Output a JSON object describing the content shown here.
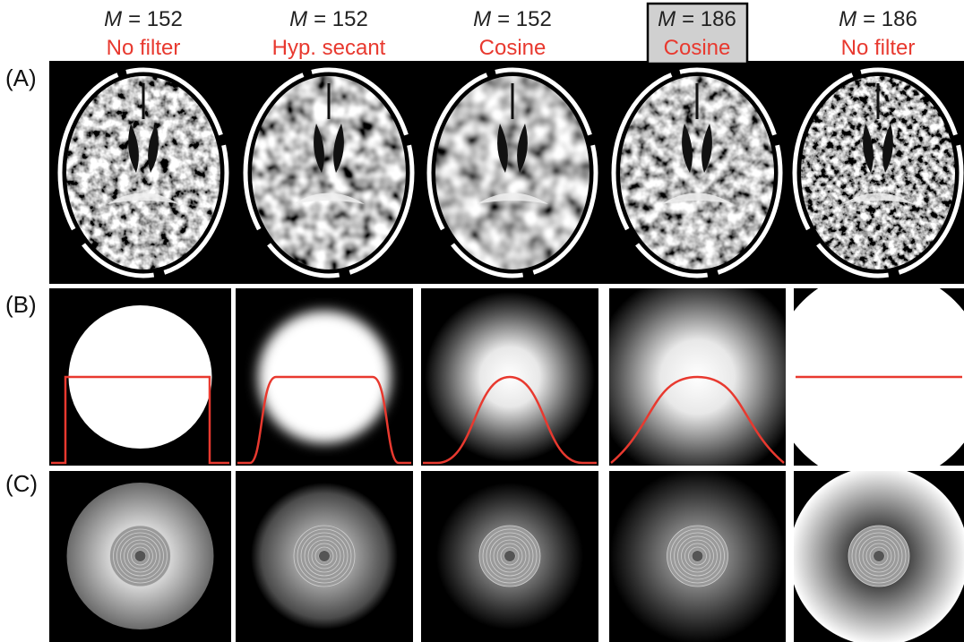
{
  "columns": [
    {
      "symbol": "M",
      "rest": "= 152",
      "filter": "No filter"
    },
    {
      "symbol": "M",
      "rest": "= 152",
      "filter": "Hyp. secant"
    },
    {
      "symbol": "M",
      "rest": "= 152",
      "filter": "Cosine"
    },
    {
      "symbol": "M",
      "rest": "= 186",
      "filter": "Cosine"
    },
    {
      "symbol": "M",
      "rest": "= 186",
      "filter": "No filter"
    }
  ],
  "rows": [
    "(A)",
    "(B)",
    "(C)"
  ]
}
